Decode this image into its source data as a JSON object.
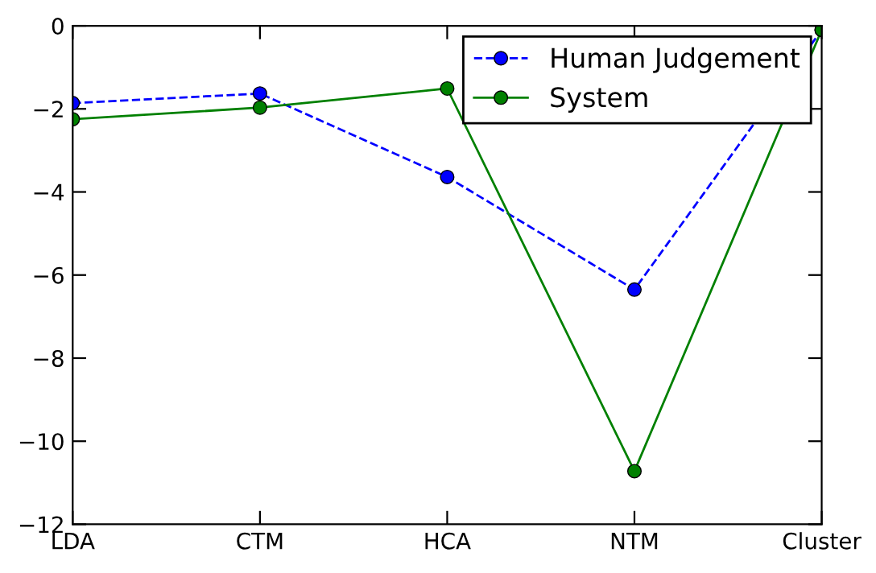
{
  "chart_data": {
    "type": "line",
    "categories": [
      "LDA",
      "CTM",
      "HCA",
      "NTM",
      "Cluster"
    ],
    "series": [
      {
        "name": "Human Judgement",
        "color": "#0000ff",
        "line_style": "dashed",
        "values": [
          -1.86,
          -1.63,
          -3.64,
          -6.35,
          -0.1
        ]
      },
      {
        "name": "System",
        "color": "#008000",
        "line_style": "solid",
        "values": [
          -2.25,
          -1.97,
          -1.51,
          -10.72,
          -0.1
        ]
      }
    ],
    "ylim": [
      -12,
      0
    ],
    "yticks": [
      -12,
      -10,
      -8,
      -6,
      -4,
      -2,
      0
    ],
    "marker": "circle",
    "legend": "top right",
    "grid": false
  }
}
